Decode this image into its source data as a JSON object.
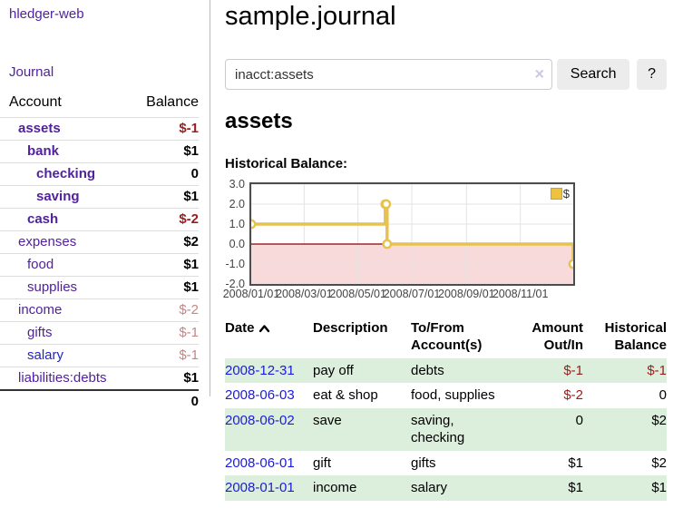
{
  "app": {
    "brand": "hledger-web"
  },
  "sidebar": {
    "journal_link": "Journal",
    "accounts_header": {
      "account": "Account",
      "balance": "Balance"
    },
    "accounts": [
      {
        "name": "assets",
        "depth": 0,
        "emphasis": true,
        "balance": "$-1",
        "sign": "neg-strong"
      },
      {
        "name": "bank",
        "depth": 1,
        "emphasis": true,
        "balance": "$1"
      },
      {
        "name": "checking",
        "depth": 2,
        "emphasis": true,
        "balance": "0"
      },
      {
        "name": "saving",
        "depth": 2,
        "emphasis": true,
        "balance": "$1"
      },
      {
        "name": "cash",
        "depth": 1,
        "emphasis": true,
        "balance": "$-2",
        "sign": "neg-strong"
      },
      {
        "name": "expenses",
        "depth": 0,
        "balance": "$2"
      },
      {
        "name": "food",
        "depth": 1,
        "balance": "$1"
      },
      {
        "name": "supplies",
        "depth": 1,
        "balance": "$1"
      },
      {
        "name": "income",
        "depth": 0,
        "balance": "$-2",
        "sign": "neg-soft"
      },
      {
        "name": "gifts",
        "depth": 1,
        "balance": "$-1",
        "sign": "neg-soft"
      },
      {
        "name": "salary",
        "depth": 1,
        "balance": "$-1",
        "sign": "neg-soft",
        "link_color": "blue"
      },
      {
        "name": "liabilities:debts",
        "depth": 0,
        "balance": "$1"
      }
    ],
    "total": "0"
  },
  "main": {
    "title": "sample.journal",
    "search": {
      "value": "inacct:assets",
      "clear_icon": "×",
      "button": "Search",
      "help_button": "?"
    },
    "account_heading": "assets",
    "chart_label": "Historical Balance:"
  },
  "chart_data": {
    "type": "line",
    "title": "Historical Balance:",
    "step": true,
    "x_range": [
      "2008-01-01",
      "2008-12-31"
    ],
    "ylim": [
      -2,
      3
    ],
    "grid": true,
    "legend_position": "top-right",
    "legend": "$",
    "colors": {
      "line": "#e6c250",
      "marker_fill": "#ffffff",
      "negative_fill": "#f9dada",
      "zero_line": "#8b0000",
      "grid": "#e3e3e3",
      "border": "#4d4d4d"
    },
    "y_ticks": [
      {
        "label": "3.0",
        "value": 3
      },
      {
        "label": "2.0",
        "value": 2
      },
      {
        "label": "1.0",
        "value": 1
      },
      {
        "label": "0.0",
        "value": 0
      },
      {
        "label": "-1.0",
        "value": -1
      },
      {
        "label": "-2.0",
        "value": -2
      }
    ],
    "x_ticks": [
      {
        "label": "2008/01/01",
        "date": "2008-01-01"
      },
      {
        "label": "2008/03/01",
        "date": "2008-03-01"
      },
      {
        "label": "2008/05/01",
        "date": "2008-05-01"
      },
      {
        "label": "2008/07/01",
        "date": "2008-07-01"
      },
      {
        "label": "2008/09/01",
        "date": "2008-09-01"
      },
      {
        "label": "2008/11/01",
        "date": "2008-11-01"
      }
    ],
    "series": [
      {
        "name": "$",
        "points": [
          {
            "date": "2008-01-01",
            "value": 1
          },
          {
            "date": "2008-06-01",
            "value": 2
          },
          {
            "date": "2008-06-02",
            "value": 2
          },
          {
            "date": "2008-06-03",
            "value": 0
          },
          {
            "date": "2008-12-31",
            "value": -1
          }
        ]
      }
    ]
  },
  "register": {
    "columns": [
      {
        "line1": "Date",
        "line2": ""
      },
      {
        "line1": "Description",
        "line2": ""
      },
      {
        "line1": "To/From",
        "line2": "Account(s)"
      },
      {
        "line1": "Amount",
        "line2": "Out/In"
      },
      {
        "line1": "Historical",
        "line2": "Balance"
      }
    ],
    "rows": [
      {
        "date": "2008-12-31",
        "description": "pay off",
        "accounts": "debts",
        "amount": "$-1",
        "amount_neg": true,
        "balance": "$-1",
        "balance_neg": true
      },
      {
        "date": "2008-06-03",
        "description": "eat & shop",
        "accounts": "food, supplies",
        "amount": "$-2",
        "amount_neg": true,
        "balance": "0",
        "balance_neg": false
      },
      {
        "date": "2008-06-02",
        "description": "save",
        "accounts": "saving,\nchecking",
        "amount": "0",
        "amount_neg": false,
        "balance": "$2",
        "balance_neg": false
      },
      {
        "date": "2008-06-01",
        "description": "gift",
        "accounts": "gifts",
        "amount": "$1",
        "amount_neg": false,
        "balance": "$2",
        "balance_neg": false
      },
      {
        "date": "2008-01-01",
        "description": "income",
        "accounts": "salary",
        "amount": "$1",
        "amount_neg": false,
        "balance": "$1",
        "balance_neg": false
      }
    ]
  }
}
